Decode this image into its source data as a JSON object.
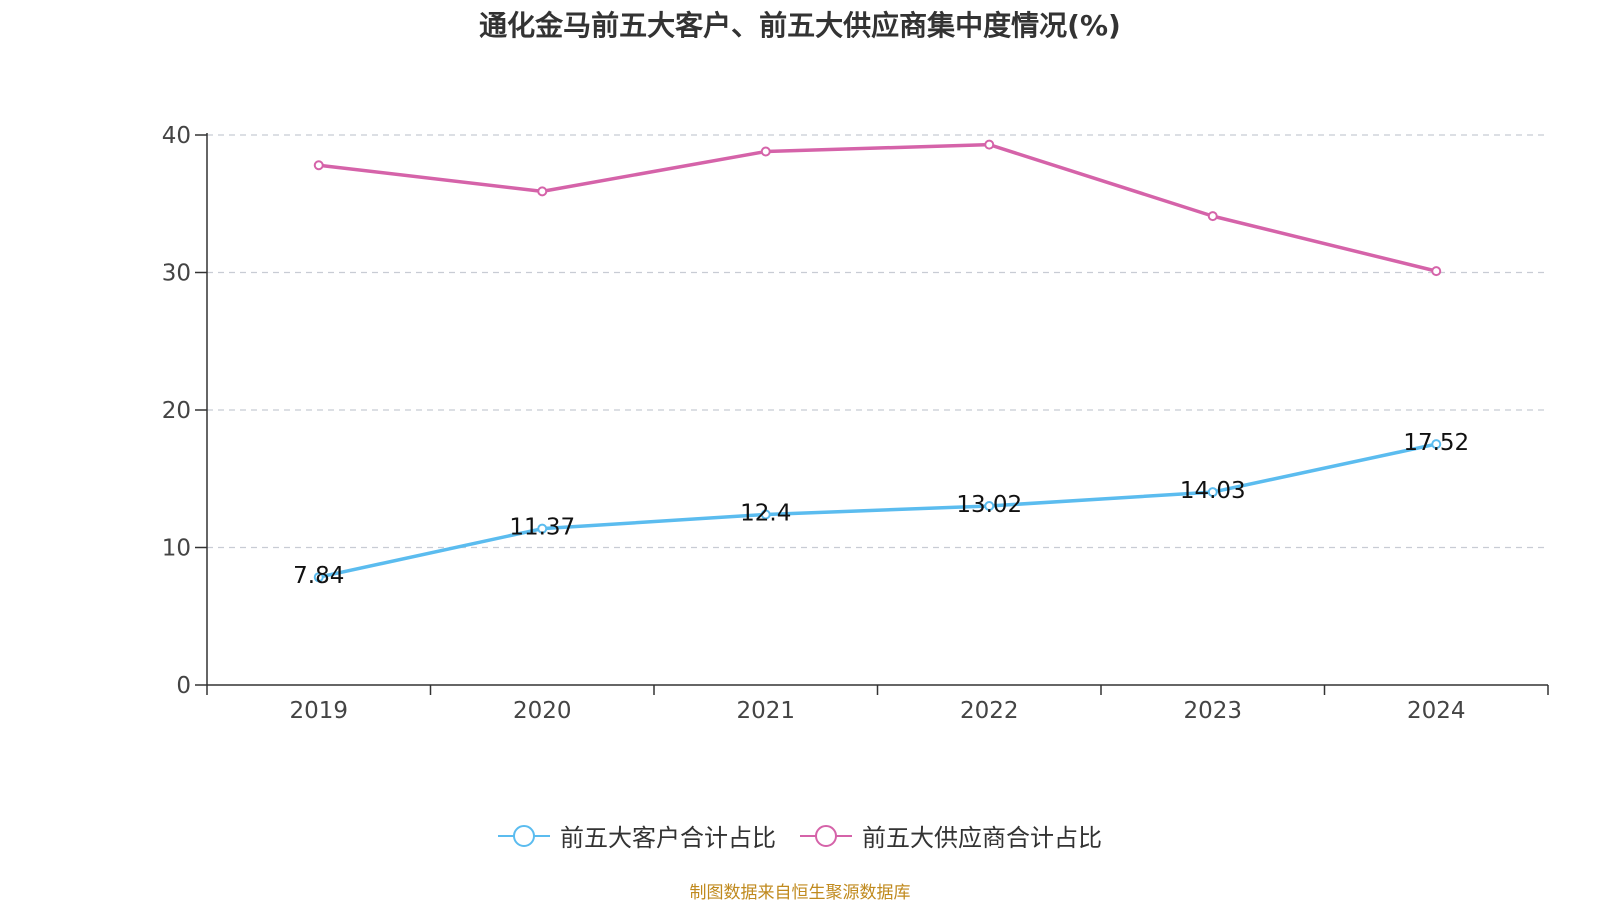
{
  "chart_data": {
    "type": "line",
    "title": "通化金马前五大客户、前五大供应商集中度情况(%)",
    "categories": [
      "2019",
      "2020",
      "2021",
      "2022",
      "2023",
      "2024"
    ],
    "ylim": [
      0,
      40
    ],
    "yticks": [
      0,
      10,
      20,
      30,
      40
    ],
    "grid": true,
    "legend_position": "bottom",
    "series": [
      {
        "name": "前五大客户合计占比",
        "color": "#5bbcef",
        "values": [
          7.84,
          11.37,
          12.4,
          13.02,
          14.03,
          17.52
        ],
        "labels": [
          "7.84",
          "11.37",
          "12.4",
          "13.02",
          "14.03",
          "17.52"
        ]
      },
      {
        "name": "前五大供应商合计占比",
        "color": "#d563a9",
        "values": [
          37.8,
          35.9,
          38.8,
          39.3,
          34.1,
          30.1
        ]
      }
    ]
  },
  "source": "制图数据来自恒生聚源数据库"
}
